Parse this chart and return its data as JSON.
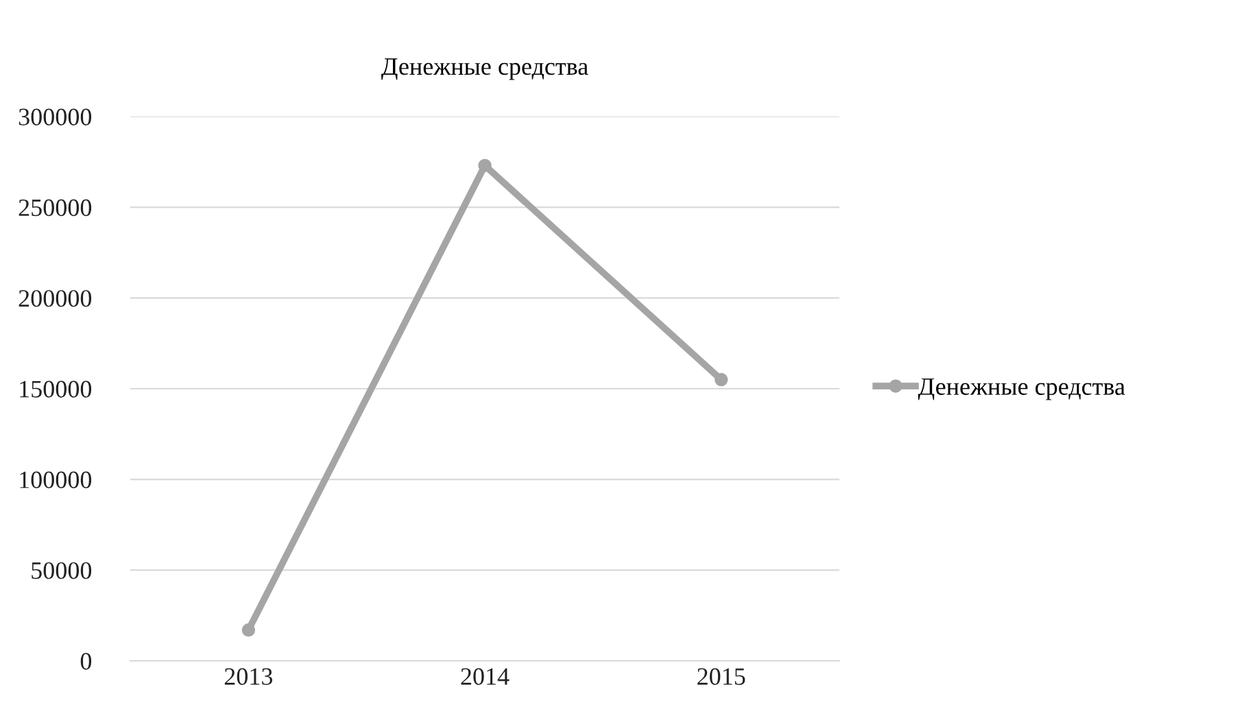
{
  "chart_data": {
    "type": "line",
    "title": "Денежные средства",
    "categories": [
      "2013",
      "2014",
      "2015"
    ],
    "series": [
      {
        "name": "Денежные средства",
        "color": "#a5a5a5",
        "values": [
          17000,
          273000,
          155000
        ]
      }
    ],
    "ylim": [
      0,
      300000
    ],
    "yticks": [
      0,
      50000,
      100000,
      150000,
      200000,
      250000,
      300000
    ],
    "grid": "y",
    "legend": "right",
    "marker": "circle",
    "line_style": "solid"
  }
}
